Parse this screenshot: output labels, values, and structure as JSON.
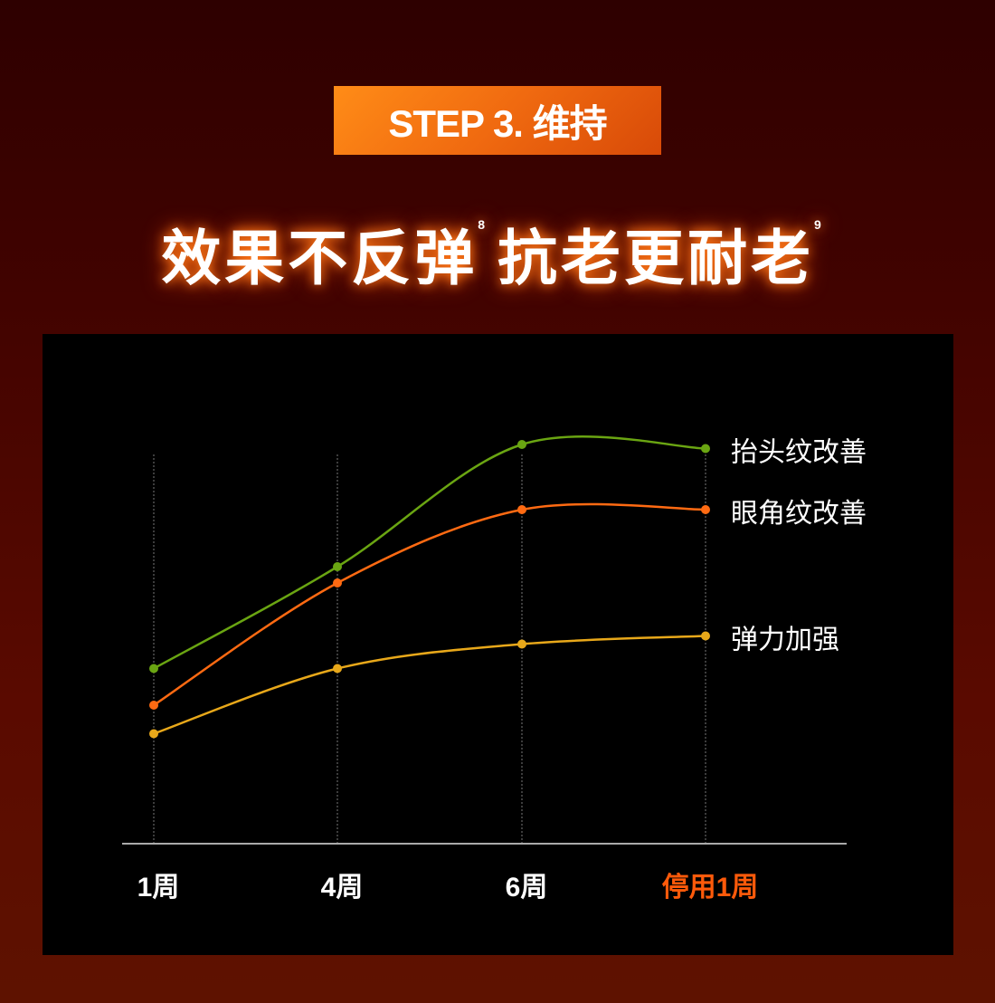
{
  "header": {
    "step_label": "STEP 3. 维持"
  },
  "title": {
    "part1": "效果不反弹",
    "sup1": "8",
    "part2": "抗老更耐老",
    "sup2": "9"
  },
  "chart_data": {
    "type": "line",
    "title": "",
    "xlabel": "",
    "ylabel": "",
    "categories": [
      "1周",
      "4周",
      "6周",
      "停用1周"
    ],
    "highlight_category_color": "#ff5a0a",
    "ylim": [
      0,
      100
    ],
    "grid": "vertical dotted",
    "legend": "right end labels",
    "series": [
      {
        "name": "抬头纹改善",
        "color": "#6aa512",
        "values": [
          43,
          68,
          98,
          97
        ]
      },
      {
        "name": "眼角纹改善",
        "color": "#ff6a12",
        "values": [
          34,
          64,
          82,
          82
        ]
      },
      {
        "name": "弹力加强",
        "color": "#e8a81a",
        "values": [
          27,
          43,
          49,
          51
        ]
      }
    ]
  }
}
